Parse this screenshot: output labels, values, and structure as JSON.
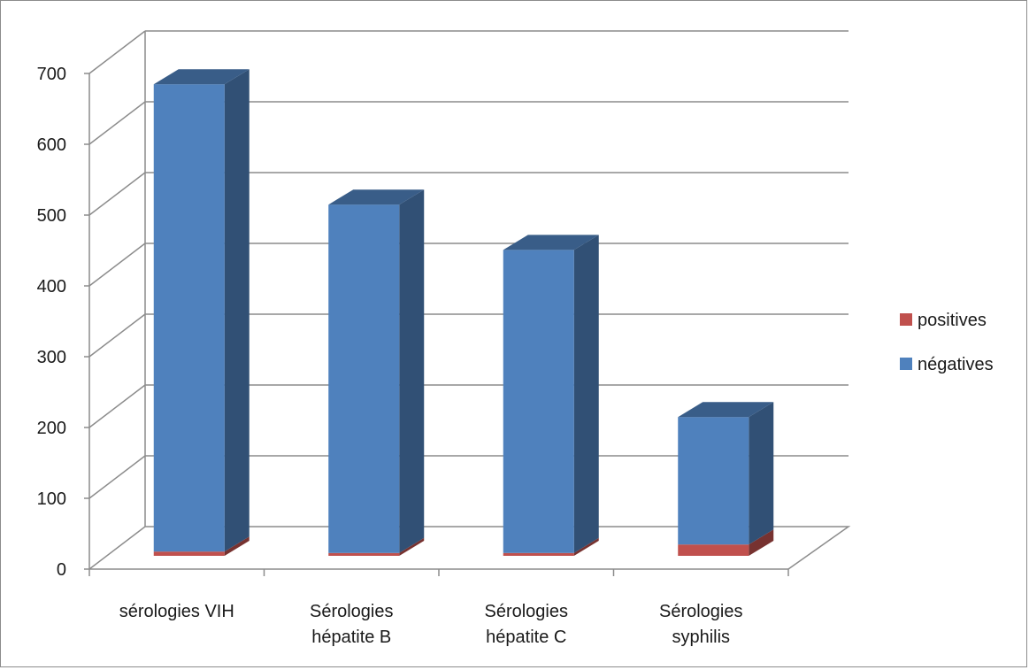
{
  "chart_data": {
    "type": "bar",
    "stacked": true,
    "three_d": true,
    "categories": [
      [
        "sérologies VIH"
      ],
      [
        "Sérologies",
        "hépatite B"
      ],
      [
        "Sérologies",
        "hépatite C"
      ],
      [
        "Sérologies",
        "syphilis"
      ]
    ],
    "series": [
      {
        "name": "négatives",
        "color": "#4f81bd",
        "values": [
          660,
          492,
          428,
          180
        ]
      },
      {
        "name": "positives",
        "color": "#c0504d",
        "values": [
          6,
          4,
          4,
          16
        ]
      }
    ],
    "ylim": [
      0,
      700
    ],
    "yticks": [
      0,
      100,
      200,
      300,
      400,
      500,
      600,
      700
    ],
    "grid": true,
    "legend_position": "right"
  },
  "legend": {
    "items": [
      {
        "label": "positives",
        "color": "#c0504d"
      },
      {
        "label": "négatives",
        "color": "#4f81bd"
      }
    ]
  }
}
